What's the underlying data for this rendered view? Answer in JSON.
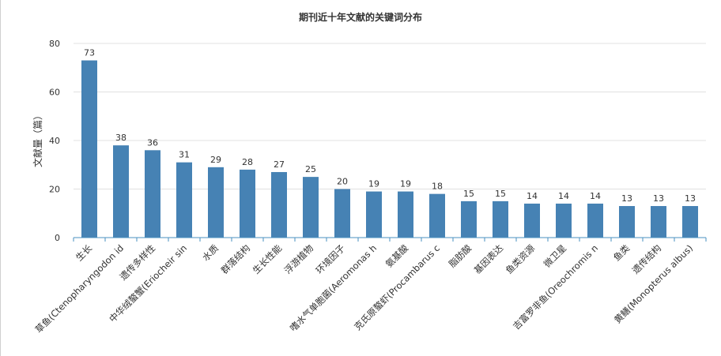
{
  "colors": {
    "bar": "#4682b4",
    "axis": "#4a90c0",
    "grid": "#e0e0e0",
    "text": "#333333",
    "left_border": "#d0d0d0"
  },
  "chart_data": {
    "type": "bar",
    "title": "期刊近十年文献的关键词分布",
    "xlabel": "",
    "ylabel": "文献量（篇）",
    "ylim": [
      0,
      80
    ],
    "yticks": [
      0,
      20,
      40,
      60,
      80
    ],
    "grid": true,
    "categories": [
      "生长",
      "草鱼(Ctenopharyngodon id",
      "遗传多样性",
      "中华绒螯蟹(Eriocheir sin",
      "水质",
      "群落结构",
      "生长性能",
      "浮游植物",
      "环境因子",
      "嗜水气单胞菌(Aeromonas h",
      "氨基酸",
      "克氏原螯虾(Procambarus c",
      "脂肪酸",
      "基因表达",
      "鱼类资源",
      "微卫星",
      "吉富罗非鱼(Oreochromis n",
      "鱼类",
      "遗传结构",
      "黄鳝(Monopterus albus)"
    ],
    "values": [
      73,
      38,
      36,
      31,
      29,
      28,
      27,
      25,
      20,
      19,
      19,
      18,
      15,
      15,
      14,
      14,
      14,
      13,
      13,
      13
    ]
  }
}
